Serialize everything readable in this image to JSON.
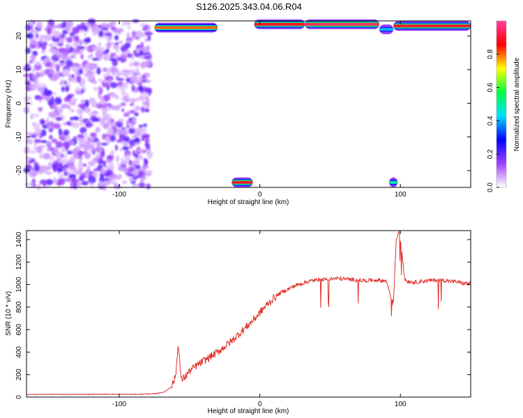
{
  "title": "S126.2025.343.04.06.R04",
  "chart_data": [
    {
      "type": "heatmap",
      "title": "",
      "xlabel": "Height of straight line (km)",
      "ylabel": "Frequency (Hz)",
      "xlim": [
        -166,
        150
      ],
      "ylim": [
        -25,
        24.5
      ],
      "x_ticks": [
        -100,
        0,
        100
      ],
      "y_ticks": [
        -20,
        -10,
        0,
        10,
        20
      ],
      "colorbar": {
        "label": "Normalized spectral amplitude",
        "range": [
          0,
          1
        ],
        "ticks": [
          "0.0",
          "0.2",
          "0.4",
          "0.6",
          "0.8"
        ],
        "colors": [
          "#ffffff",
          "#a040ff",
          "#0000ff",
          "#00e0ff",
          "#00ff40",
          "#ffff00",
          "#ff0000",
          "#ff40a0"
        ]
      },
      "bands": [
        {
          "x_from": -75,
          "x_to": -30,
          "freq": 22.5,
          "peak": 0.8
        },
        {
          "x_from": -4,
          "x_to": 32,
          "freq": 23.5,
          "peak": 0.9
        },
        {
          "x_from": 32,
          "x_to": 85,
          "freq": 23.5,
          "peak": 0.95
        },
        {
          "x_from": 85,
          "x_to": 95,
          "freq": 22,
          "peak": 0.4
        },
        {
          "x_from": 95,
          "x_to": 150,
          "freq": 23,
          "peak": 0.9
        },
        {
          "x_from": -20,
          "x_to": -5,
          "freq": -23.5,
          "peak": 0.9
        },
        {
          "x_from": 92,
          "x_to": 98,
          "freq": -23.5,
          "peak": 0.5
        }
      ],
      "noise_region": {
        "x_from": -166,
        "x_to": -78,
        "level": 0.25
      }
    },
    {
      "type": "line",
      "title": "",
      "xlabel": "Height of straight line (km)",
      "ylabel": "SNR (10 * v/v)",
      "xlim": [
        -166,
        150
      ],
      "ylim": [
        0,
        1480
      ],
      "x_ticks": [
        -100,
        0,
        100
      ],
      "y_ticks": [
        0,
        200,
        400,
        600,
        800,
        1000,
        1200,
        1400
      ],
      "series": [
        {
          "color": "#e0302a",
          "x": [
            -166,
            -150,
            -130,
            -110,
            -90,
            -75,
            -68,
            -63,
            -60,
            -58,
            -56,
            -54,
            -50,
            -45,
            -40,
            -35,
            -30,
            -25,
            -20,
            -15,
            -10,
            -5,
            0,
            5,
            10,
            15,
            20,
            25,
            30,
            35,
            40,
            45,
            50,
            55,
            60,
            65,
            70,
            75,
            80,
            85,
            90,
            95,
            97,
            99,
            101,
            103,
            105,
            110,
            115,
            120,
            125,
            130,
            135,
            140,
            145,
            150
          ],
          "y": [
            22,
            24,
            23,
            26,
            24,
            30,
            45,
            90,
            180,
            480,
            150,
            170,
            230,
            280,
            320,
            360,
            400,
            450,
            500,
            560,
            620,
            680,
            750,
            820,
            880,
            930,
            960,
            990,
            1010,
            1030,
            1040,
            1045,
            1050,
            1055,
            1050,
            1045,
            1040,
            1035,
            1040,
            1040,
            1030,
            820,
            1400,
            1480,
            1300,
            1050,
            1030,
            1020,
            1030,
            1035,
            1040,
            1040,
            1030,
            1025,
            1010,
            1010
          ]
        }
      ]
    }
  ]
}
